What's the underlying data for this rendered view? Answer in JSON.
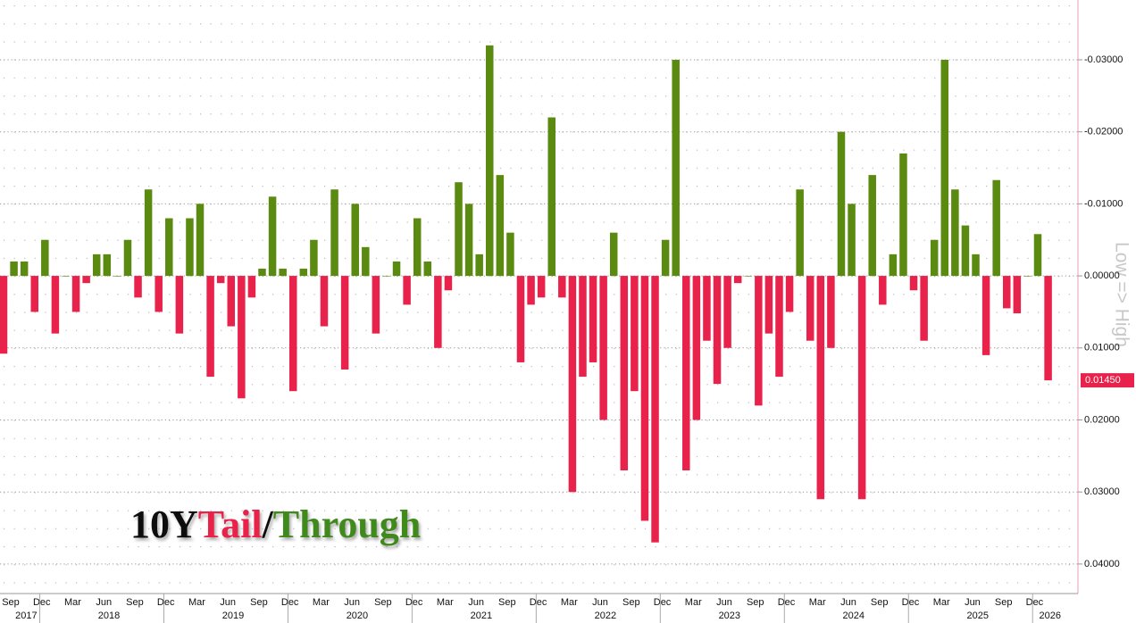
{
  "chart_data": {
    "type": "bar",
    "title_parts": [
      {
        "text": "10Y",
        "color": "#111111"
      },
      {
        "text": "Tail",
        "color": "#e8224a"
      },
      {
        "text": "/",
        "color": "#111111"
      },
      {
        "text": "Through",
        "color": "#3f8a1e"
      }
    ],
    "y_label": "Low => High",
    "x": [
      "2017-09",
      "2017-10",
      "2017-11",
      "2017-12",
      "2018-01",
      "2018-02",
      "2018-03",
      "2018-04",
      "2018-05",
      "2018-06",
      "2018-07",
      "2018-08",
      "2018-09",
      "2018-10",
      "2018-11",
      "2018-12",
      "2019-01",
      "2019-02",
      "2019-03",
      "2019-04",
      "2019-05",
      "2019-06",
      "2019-07",
      "2019-08",
      "2019-09",
      "2019-10",
      "2019-11",
      "2019-12",
      "2020-01",
      "2020-02",
      "2020-03",
      "2020-04",
      "2020-05",
      "2020-06",
      "2020-07",
      "2020-08",
      "2020-09",
      "2020-10",
      "2020-11",
      "2020-12",
      "2021-01",
      "2021-02",
      "2021-03",
      "2021-04",
      "2021-05",
      "2021-06",
      "2021-07",
      "2021-08",
      "2021-09",
      "2021-10",
      "2021-11",
      "2021-12",
      "2022-01",
      "2022-02",
      "2022-03",
      "2022-04",
      "2022-05",
      "2022-06",
      "2022-07",
      "2022-08",
      "2022-09",
      "2022-10",
      "2022-11",
      "2022-12",
      "2023-01",
      "2023-02",
      "2023-03",
      "2023-04",
      "2023-05",
      "2023-06",
      "2023-07",
      "2023-08",
      "2023-09",
      "2023-10",
      "2023-11",
      "2023-12",
      "2024-01",
      "2024-02",
      "2024-03",
      "2024-04",
      "2024-05",
      "2024-06",
      "2024-07",
      "2024-08",
      "2024-09",
      "2024-10",
      "2024-11",
      "2024-12",
      "2025-01",
      "2025-02",
      "2025-03",
      "2025-04",
      "2025-05",
      "2025-06",
      "2025-07",
      "2025-08",
      "2025-09",
      "2025-10",
      "2025-11",
      "2025-12",
      "2026-01",
      "2026-02"
    ],
    "values": [
      0.0108,
      -0.002,
      -0.002,
      0.005,
      -0.005,
      0.008,
      0.0,
      0.005,
      0.001,
      -0.003,
      -0.003,
      0.0,
      -0.005,
      0.003,
      -0.012,
      0.005,
      -0.008,
      0.008,
      -0.008,
      -0.01,
      0.014,
      0.001,
      0.007,
      0.017,
      0.003,
      -0.001,
      -0.011,
      -0.001,
      0.016,
      -0.001,
      -0.005,
      0.007,
      -0.012,
      0.013,
      -0.01,
      -0.004,
      0.008,
      0.0,
      -0.002,
      0.004,
      -0.008,
      -0.002,
      0.01,
      0.002,
      -0.013,
      -0.01,
      -0.003,
      -0.032,
      -0.014,
      -0.006,
      0.012,
      0.004,
      0.003,
      -0.022,
      0.003,
      0.03,
      0.014,
      0.012,
      0.02,
      -0.006,
      0.027,
      0.016,
      0.034,
      0.037,
      -0.005,
      -0.03,
      0.027,
      0.02,
      0.009,
      0.015,
      0.01,
      0.001,
      0.0,
      0.018,
      0.008,
      0.014,
      0.005,
      -0.012,
      0.009,
      0.031,
      0.01,
      -0.02,
      -0.01,
      0.031,
      -0.014,
      0.004,
      -0.003,
      -0.017,
      0.002,
      0.009,
      -0.005,
      -0.03,
      -0.012,
      -0.007,
      -0.003,
      0.011,
      -0.0133,
      0.0045,
      0.0052,
      0.0,
      -0.0058,
      0.0145
    ],
    "last_value_label": "0.01450",
    "positive_color": "#e8224a",
    "negative_color": "#5a8a0f",
    "ylim": [
      -0.0383,
      0.0441
    ],
    "y_inverted": true,
    "yticks": [
      {
        "value": -0.03,
        "label": "-0.03000"
      },
      {
        "value": -0.02,
        "label": "-0.02000"
      },
      {
        "value": -0.01,
        "label": "-0.01000"
      },
      {
        "value": 0,
        "label": "0.00000"
      },
      {
        "value": 0.01,
        "label": "0.01000"
      },
      {
        "value": 0.02,
        "label": "0.02000"
      },
      {
        "value": 0.03,
        "label": "0.03000"
      },
      {
        "value": 0.04,
        "label": "0.04000"
      }
    ],
    "xticks": [
      {
        "value": "2017-09",
        "label": "Sep"
      },
      {
        "value": "2017-12",
        "label": "Dec"
      },
      {
        "value": "2018-03",
        "label": "Mar"
      },
      {
        "value": "2018-06",
        "label": "Jun"
      },
      {
        "value": "2018-09",
        "label": "Sep"
      },
      {
        "value": "2018-12",
        "label": "Dec"
      },
      {
        "value": "2019-03",
        "label": "Mar"
      },
      {
        "value": "2019-06",
        "label": "Jun"
      },
      {
        "value": "2019-09",
        "label": "Sep"
      },
      {
        "value": "2019-12",
        "label": "Dec"
      },
      {
        "value": "2020-03",
        "label": "Mar"
      },
      {
        "value": "2020-06",
        "label": "Jun"
      },
      {
        "value": "2020-09",
        "label": "Sep"
      },
      {
        "value": "2020-12",
        "label": "Dec"
      },
      {
        "value": "2021-03",
        "label": "Mar"
      },
      {
        "value": "2021-06",
        "label": "Jun"
      },
      {
        "value": "2021-09",
        "label": "Sep"
      },
      {
        "value": "2021-12",
        "label": "Dec"
      },
      {
        "value": "2022-03",
        "label": "Mar"
      },
      {
        "value": "2022-06",
        "label": "Jun"
      },
      {
        "value": "2022-09",
        "label": "Sep"
      },
      {
        "value": "2022-12",
        "label": "Dec"
      },
      {
        "value": "2023-03",
        "label": "Mar"
      },
      {
        "value": "2023-06",
        "label": "Jun"
      },
      {
        "value": "2023-09",
        "label": "Sep"
      },
      {
        "value": "2023-12",
        "label": "Dec"
      },
      {
        "value": "2024-03",
        "label": "Mar"
      },
      {
        "value": "2024-06",
        "label": "Jun"
      },
      {
        "value": "2024-09",
        "label": "Sep"
      },
      {
        "value": "2024-12",
        "label": "Dec"
      },
      {
        "value": "2025-03",
        "label": "Mar"
      },
      {
        "value": "2025-06",
        "label": "Jun"
      },
      {
        "value": "2025-09",
        "label": "Sep"
      },
      {
        "value": "2025-12",
        "label": "Dec"
      }
    ],
    "years": [
      "2017",
      "2018",
      "2019",
      "2020",
      "2021",
      "2022",
      "2023",
      "2024",
      "2025",
      "2026"
    ],
    "grid": true
  }
}
